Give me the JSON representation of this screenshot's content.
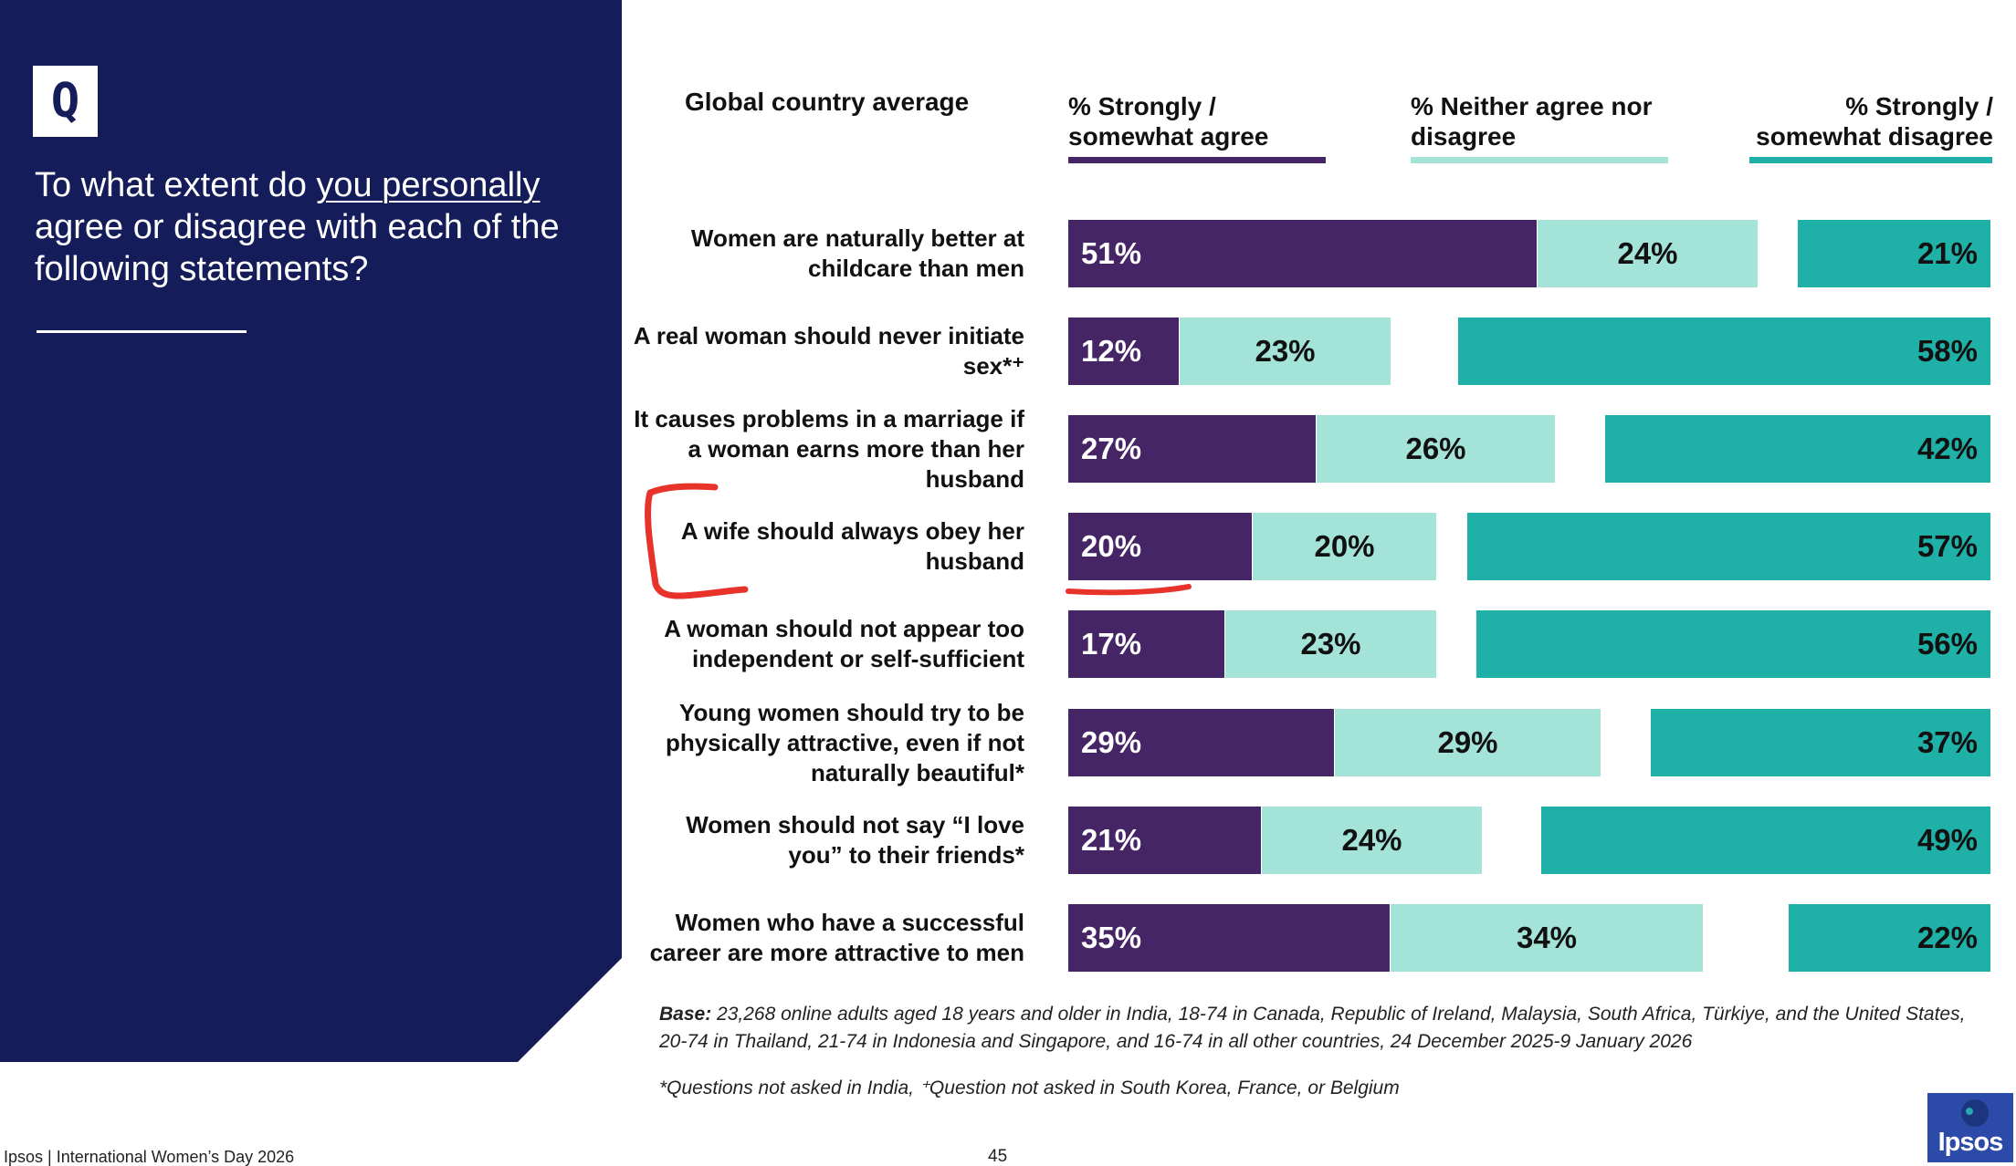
{
  "question": {
    "badge": "Q",
    "text_before": "To what extent do ",
    "text_underlined": "you personally",
    "text_after": " agree or disagree with each of the following statements?"
  },
  "colors": {
    "panel": "#141c5a",
    "agree": "#452566",
    "neither": "#a3e3d8",
    "disagree": "#1fb0a8",
    "annotation": "#e8332a"
  },
  "chart_data": {
    "type": "bar",
    "orientation": "horizontal",
    "stacked": true,
    "title": "Global country average",
    "series_names": {
      "agree": "% Strongly / somewhat agree",
      "neither": "% Neither agree nor disagree",
      "disagree": "% Strongly / somewhat disagree"
    },
    "rows": [
      {
        "statement": "Women are naturally better at childcare than men",
        "agree": 51,
        "neither": 24,
        "disagree": 21
      },
      {
        "statement": "A real woman should never initiate sex*⁺",
        "agree": 12,
        "neither": 23,
        "disagree": 58
      },
      {
        "statement": "It causes problems in a marriage if a woman earns more than her husband",
        "agree": 27,
        "neither": 26,
        "disagree": 42
      },
      {
        "statement": "A wife should always obey her husband",
        "agree": 20,
        "neither": 20,
        "disagree": 57
      },
      {
        "statement": "A woman should not appear too independent or self-sufficient",
        "agree": 17,
        "neither": 23,
        "disagree": 56
      },
      {
        "statement": "Young women should try to be physically attractive, even if not naturally beautiful*",
        "agree": 29,
        "neither": 29,
        "disagree": 37
      },
      {
        "statement": "Women should not say “I love you” to their friends*",
        "agree": 21,
        "neither": 24,
        "disagree": 49
      },
      {
        "statement": "Women who have a successful career are more attractive to men",
        "agree": 35,
        "neither": 34,
        "disagree": 22
      }
    ],
    "value_suffix": "%",
    "annotation_note": "Row 4 (A wife should always obey her husband) is marked with a hand-drawn red bracket and underline"
  },
  "notes": {
    "base_label": "Base:",
    "base_text": " 23,268 online adults aged 18 years and older in India, 18-74 in Canada, Republic of Ireland, Malaysia, South Africa, Türkiye, and the United States, 20-74 in Thailand, 21-74 in Indonesia and Singapore, and 16-74 in all other countries, 24 December 2025-9 January 2026",
    "footnote": "*Questions not asked in India, ⁺Question not asked in South Korea, France, or Belgium"
  },
  "footer": {
    "source": "Ipsos | International Women’s Day 2026",
    "page_number": "45",
    "logo_text": "Ipsos"
  }
}
